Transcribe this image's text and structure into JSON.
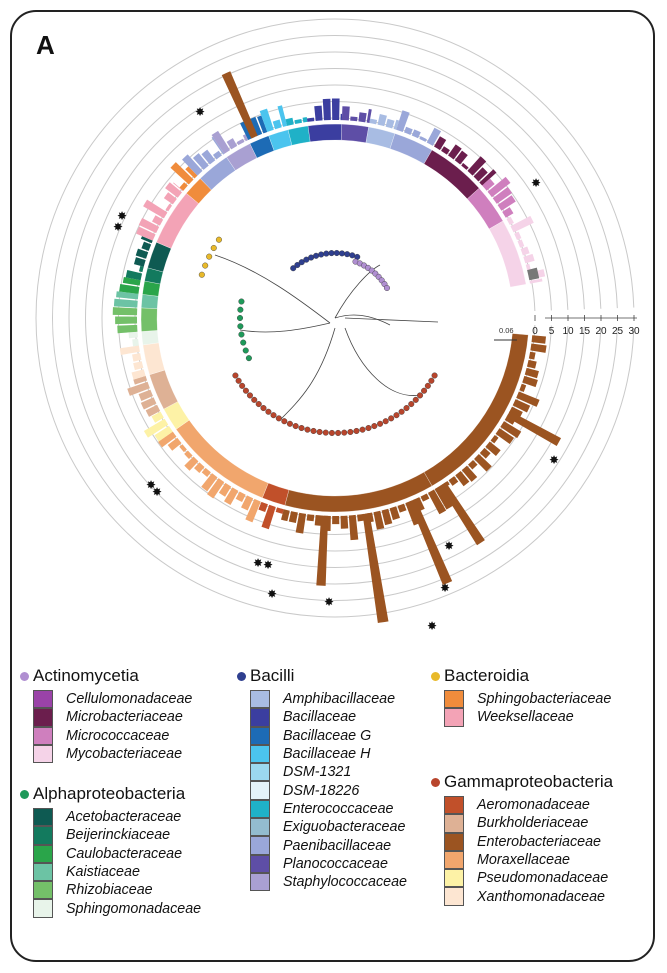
{
  "panel_label": "A",
  "scale_bar_label": "0.06",
  "axis_ticks": [
    "0",
    "5",
    "10",
    "15",
    "20",
    "25",
    "30"
  ],
  "classes": {
    "actinomycetia": {
      "name": "Actinomycetia",
      "color": "#b08fd1",
      "families": [
        {
          "name": "Cellulomonadaceae",
          "color": "#9a43a8"
        },
        {
          "name": "Microbacteriaceae",
          "color": "#6b1e4d"
        },
        {
          "name": "Micrococcaceae",
          "color": "#cf7fbe"
        },
        {
          "name": "Mycobacteriaceae",
          "color": "#f5d3e8"
        }
      ]
    },
    "alphaproteobacteria": {
      "name": "Alphaproteobacteria",
      "color": "#1f9a5a",
      "families": [
        {
          "name": "Acetobacteraceae",
          "color": "#0e5a52"
        },
        {
          "name": "Beijerinckiaceae",
          "color": "#137a5e"
        },
        {
          "name": "Caulobacteraceae",
          "color": "#2aa54a"
        },
        {
          "name": "Kaistiaceae",
          "color": "#6cc3a4"
        },
        {
          "name": "Rhizobiaceae",
          "color": "#74c069"
        },
        {
          "name": "Sphingomonadaceae",
          "color": "#e8f4ea"
        }
      ]
    },
    "bacilli": {
      "name": "Bacilli",
      "color": "#2f3f8f",
      "families": [
        {
          "name": "Amphibacillaceae",
          "color": "#a8bce3"
        },
        {
          "name": "Bacillaceae",
          "color": "#3b3ea0"
        },
        {
          "name": "Bacillaceae G",
          "color": "#1d6bb5"
        },
        {
          "name": "Bacillaceae H",
          "color": "#4bc4ee"
        },
        {
          "name": "DSM-1321",
          "color": "#9bd8ef"
        },
        {
          "name": "DSM-18226",
          "color": "#e4f3fa"
        },
        {
          "name": "Enterococcaceae",
          "color": "#1fb1c7"
        },
        {
          "name": "Exiguobacteraceae",
          "color": "#93bccf"
        },
        {
          "name": "Paenibacillaceae",
          "color": "#9aa7d9"
        },
        {
          "name": "Planococcaceae",
          "color": "#5e4ea6"
        },
        {
          "name": "Staphylococcaceae",
          "color": "#a9a0d2"
        }
      ]
    },
    "bacteroidia": {
      "name": "Bacteroidia",
      "color": "#e8b92a",
      "families": [
        {
          "name": "Sphingobacteriaceae",
          "color": "#f08c3c"
        },
        {
          "name": "Weeksellaceae",
          "color": "#f3a3b6"
        }
      ]
    },
    "gammaproteobacteria": {
      "name": "Gammaproteobacteria",
      "color": "#b8452c",
      "families": [
        {
          "name": "Aeromonadaceae",
          "color": "#c1502a"
        },
        {
          "name": "Burkholderiaceae",
          "color": "#deb195"
        },
        {
          "name": "Enterobacteriaceae",
          "color": "#9b5421"
        },
        {
          "name": "Moraxellaceae",
          "color": "#f1a66d"
        },
        {
          "name": "Pseudomonadaceae",
          "color": "#fdf2a6"
        },
        {
          "name": "Xanthomonadaceae",
          "color": "#fde6d2"
        }
      ]
    }
  }
}
